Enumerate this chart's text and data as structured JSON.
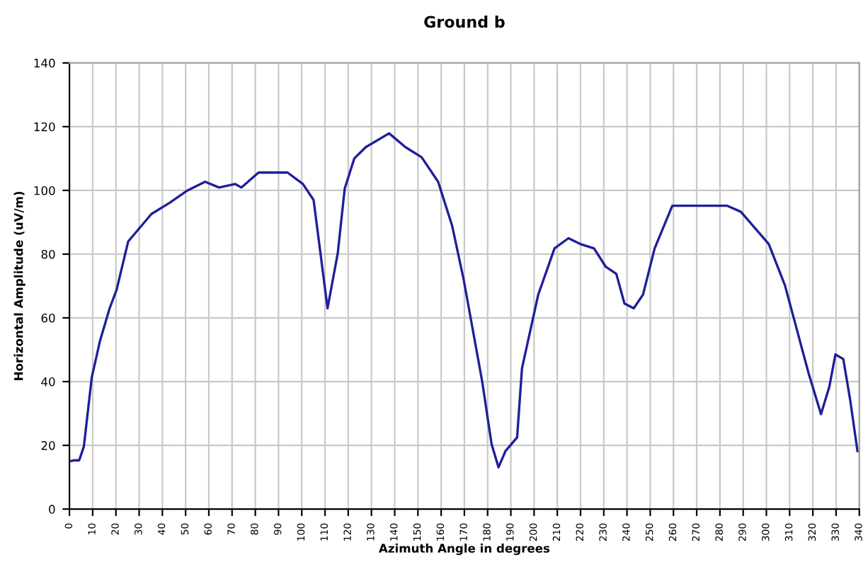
{
  "chart_data": {
    "type": "line",
    "title": "Ground b",
    "xlabel": "Azimuth Angle in degrees",
    "ylabel": "Horizontal Amplitude (uV/m)",
    "x": [
      0,
      2.2,
      4.2,
      6.2,
      9.6,
      13.2,
      17.3,
      20.3,
      25.3,
      35.3,
      43.3,
      50.4,
      58.4,
      64.4,
      71.4,
      74,
      81.4,
      93.9,
      100.5,
      105.1,
      111.1,
      115.5,
      118.5,
      122.6,
      127.6,
      137.6,
      144.6,
      151.6,
      158.7,
      164.7,
      169.7,
      177.7,
      181.7,
      184.7,
      187.7,
      192.7,
      194.8,
      201.8,
      208.8,
      214.8,
      219.8,
      225.8,
      230.9,
      235.4,
      238.9,
      242.9,
      246.9,
      251.9,
      259.5,
      283,
      289,
      301,
      308,
      318.1,
      323.5,
      327.1,
      329.7,
      333.1,
      336.1,
      339.2
    ],
    "series": [
      {
        "color": "#1f1f9a",
        "values": [
          15,
          15.3,
          15.3,
          19.6,
          41.3,
          52.9,
          63,
          68.8,
          84,
          92.6,
          96.2,
          99.8,
          102.7,
          100.9,
          102,
          100.9,
          105.6,
          105.6,
          102,
          97,
          63,
          80.3,
          100.6,
          110,
          113.6,
          117.9,
          113.6,
          110.4,
          102.7,
          89,
          72,
          39.9,
          20.4,
          13.1,
          18.2,
          22.5,
          44.2,
          67.3,
          81.8,
          85,
          83.2,
          81.8,
          76,
          73.8,
          64.5,
          63,
          67.3,
          81.8,
          95.2,
          95.2,
          93.3,
          83.2,
          70.2,
          42.8,
          29.8,
          38.4,
          48.5,
          47.1,
          34.1,
          18.2
        ]
      }
    ],
    "xlim": [
      0,
      340
    ],
    "xticks": [
      0,
      10,
      20,
      30,
      40,
      50,
      60,
      70,
      80,
      90,
      100,
      110,
      120,
      130,
      140,
      150,
      160,
      170,
      180,
      190,
      200,
      210,
      220,
      230,
      240,
      250,
      260,
      270,
      280,
      290,
      300,
      310,
      320,
      330,
      340
    ],
    "ylim": [
      0,
      140
    ],
    "yticks": [
      0,
      20,
      40,
      60,
      80,
      100,
      120,
      140
    ],
    "grid": true,
    "legend": false,
    "marker": "none",
    "line_style": "solid"
  }
}
